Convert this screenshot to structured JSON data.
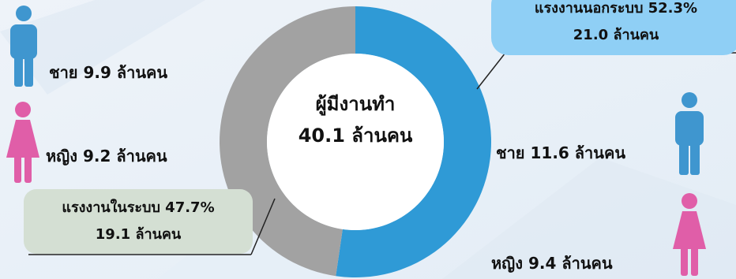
{
  "colors": {
    "informal_slice": "#2f9ad6",
    "formal_slice": "#a2a2a2",
    "male_icon": "#3f96cf",
    "female_icon": "#e05ea8",
    "formal_badge": "#d4dfd3",
    "informal_badge": "#8fcff5"
  },
  "center": {
    "line1": "ผู้มีงานทำ",
    "line2": "40.1 ล้านคน"
  },
  "formal": {
    "label": "แรงงานในระบบ 47.7%",
    "count": "19.1 ล้านคน",
    "male": "ชาย 9.9 ล้านคน",
    "female": "หญิง 9.2 ล้านคน"
  },
  "informal": {
    "label": "แรงงานนอกระบบ 52.3%",
    "count": "21.0 ล้านคน",
    "male": "ชาย 11.6 ล้านคน",
    "female": "หญิง 9.4 ล้านคน"
  },
  "icons": [
    "male-icon",
    "female-icon",
    "male-icon",
    "female-icon"
  ],
  "chart_data": {
    "type": "pie",
    "donut": true,
    "categories": [
      "แรงงานนอกระบบ",
      "แรงงานในระบบ"
    ],
    "values": [
      52.3,
      47.7
    ],
    "counts_million": [
      21.0,
      19.1
    ],
    "total_label": "40.1 ล้านคน"
  }
}
